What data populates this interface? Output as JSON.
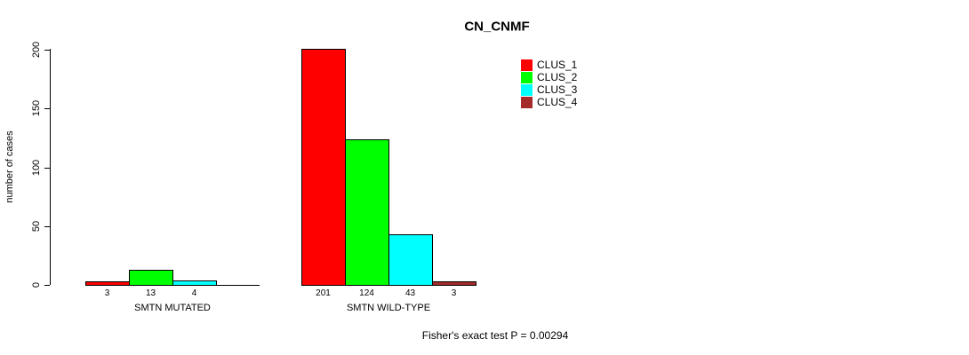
{
  "chart_data": {
    "type": "bar",
    "title": "CN_CNMF",
    "ylabel": "number of cases",
    "ylim": [
      0,
      200
    ],
    "yticks": [
      0,
      50,
      100,
      150,
      200
    ],
    "grid": false,
    "legend_position": "top-right",
    "categories": [
      "SMTN MUTATED",
      "SMTN WILD-TYPE"
    ],
    "series": [
      {
        "name": "CLUS_1",
        "color": "#FF0000",
        "values": [
          3,
          201
        ]
      },
      {
        "name": "CLUS_2",
        "color": "#00FF00",
        "values": [
          13,
          124
        ]
      },
      {
        "name": "CLUS_3",
        "color": "#00FFFF",
        "values": [
          4,
          43
        ]
      },
      {
        "name": "CLUS_4",
        "color": "#A52A2A",
        "values": [
          0,
          3
        ]
      }
    ],
    "bar_value_labels": true,
    "annotation": "Fisher's exact test P = 0.00294"
  }
}
